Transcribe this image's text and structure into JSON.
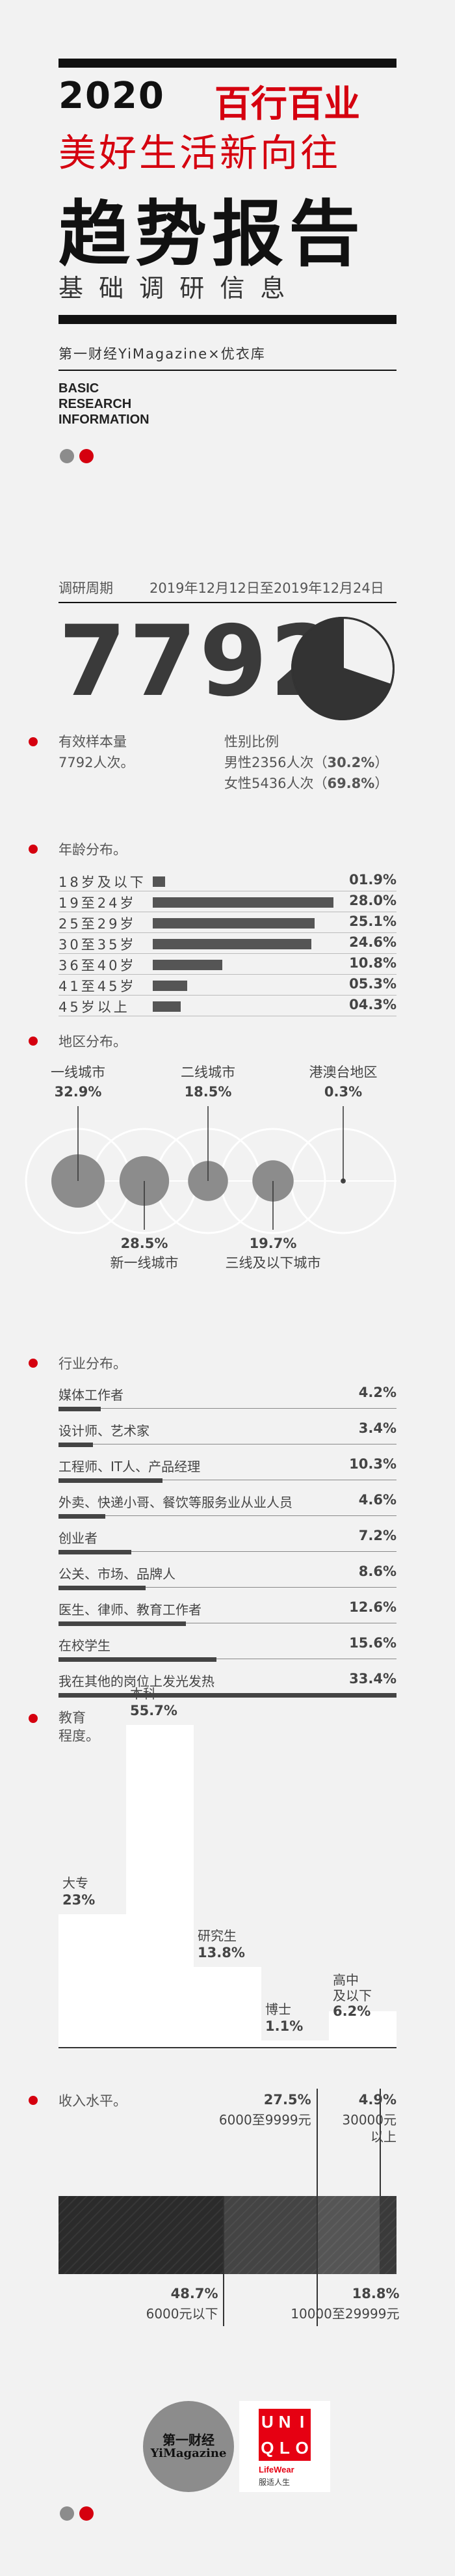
{
  "header": {
    "year": "2020",
    "brand_title": "百行百业",
    "tagline": "美好生活新向往",
    "main_title": "趋势报告",
    "subtitle": "基 础 调 研 信 息",
    "byline": "第一财经YiMagazine×优衣库",
    "english_lines": [
      "BASIC",
      "RESEARCH",
      "INFORMATION"
    ]
  },
  "survey": {
    "period_label": "调研周期",
    "period_value": "2019年12月12日至2019年12月24日",
    "big_number": "7792",
    "sample_label": "有效样本量",
    "sample_value": "7792人次。",
    "gender_label": "性别比例",
    "male_text": "男性2356人次（",
    "male_pct": "30.2%",
    "female_text": "女性5436人次（",
    "female_pct": "69.8%",
    "close_paren": "）"
  },
  "sections": {
    "age": "年龄分布。",
    "region": "地区分布。",
    "industry": "行业分布。",
    "education": "教育\n程度。",
    "income": "收入水平。"
  },
  "chart_data": [
    {
      "type": "pie",
      "categories": [
        "男性",
        "女性"
      ],
      "values": [
        30.2,
        69.8
      ],
      "colors": [
        "#f2f2f2",
        "#333333"
      ]
    },
    {
      "type": "bar",
      "title": "年龄分布。",
      "categories": [
        "18岁及以下",
        "19至24岁",
        "25至29岁",
        "30至35岁",
        "36至40岁",
        "41至45岁",
        "45岁以上"
      ],
      "values": [
        1.9,
        28.0,
        25.1,
        24.6,
        10.8,
        5.3,
        4.3
      ],
      "value_labels": [
        "01.9%",
        "28.0%",
        "25.1%",
        "24.6%",
        "10.8%",
        "05.3%",
        "04.3%"
      ],
      "xlim": [
        0,
        28.0
      ],
      "color": "#555555"
    },
    {
      "type": "scatter",
      "title": "地区分布。",
      "categories": [
        "一线城市",
        "新一线城市",
        "二线城市",
        "三线及以下城市",
        "港澳台地区"
      ],
      "values": [
        32.9,
        28.5,
        18.5,
        19.7,
        0.3
      ],
      "value_labels": [
        "32.9%",
        "28.5%",
        "18.5%",
        "19.7%",
        "0.3%"
      ],
      "color": "#8c8c8c"
    },
    {
      "type": "bar",
      "title": "行业分布。",
      "categories": [
        "媒体工作者",
        "设计师、艺术家",
        "工程师、IT人、产品经理",
        "外卖、快递小哥、餐饮等服务业从业人员",
        "创业者",
        "公关、市场、品牌人",
        "医生、律师、教育工作者",
        "在校学生",
        "我在其他的岗位上发光发热"
      ],
      "values": [
        4.2,
        3.4,
        10.3,
        4.6,
        7.2,
        8.6,
        12.6,
        15.6,
        33.4
      ],
      "value_labels": [
        "4.2%",
        "3.4%",
        "10.3%",
        "4.6%",
        "7.2%",
        "8.6%",
        "12.6%",
        "15.6%",
        "33.4%"
      ],
      "xlim": [
        0,
        33.4
      ],
      "color": "#444444"
    },
    {
      "type": "bar",
      "title": "教育程度。",
      "categories": [
        "大专",
        "本科",
        "研究生",
        "博士",
        "高中及以下"
      ],
      "values": [
        23,
        55.7,
        13.8,
        1.1,
        6.2
      ],
      "value_labels": [
        "23%",
        "55.7%",
        "13.8%",
        "1.1%",
        "6.2%"
      ],
      "ylim": [
        0,
        55.7
      ],
      "color": "#ffffff"
    },
    {
      "type": "bar",
      "title": "收入水平。",
      "categories": [
        "6000元以下",
        "6000至9999元",
        "10000至29999元",
        "30000元以上"
      ],
      "values": [
        48.7,
        27.5,
        18.8,
        4.9
      ],
      "value_labels": [
        "48.7%",
        "27.5%",
        "18.8%",
        "4.9%"
      ],
      "category_lines": [
        [
          "6000元以下"
        ],
        [
          "6000至9999元"
        ],
        [
          "10000至29999元"
        ],
        [
          "30000元",
          "以上"
        ]
      ],
      "colors": [
        "#2b2b2b",
        "#444444",
        "#555555",
        "#3a3a3a"
      ]
    }
  ],
  "footer": {
    "logo1_line1": "第一财经",
    "logo1_line2": "YiMagazine",
    "logo2_letters": [
      "U",
      "N",
      "I",
      "Q",
      "L",
      "O"
    ],
    "logo2_line1": "LifeWear",
    "logo2_line2": "服适人生"
  },
  "colors": {
    "accent": "#d5000f",
    "dark": "#333333",
    "mid": "#8c8c8c",
    "background": "#f2f2f2"
  }
}
